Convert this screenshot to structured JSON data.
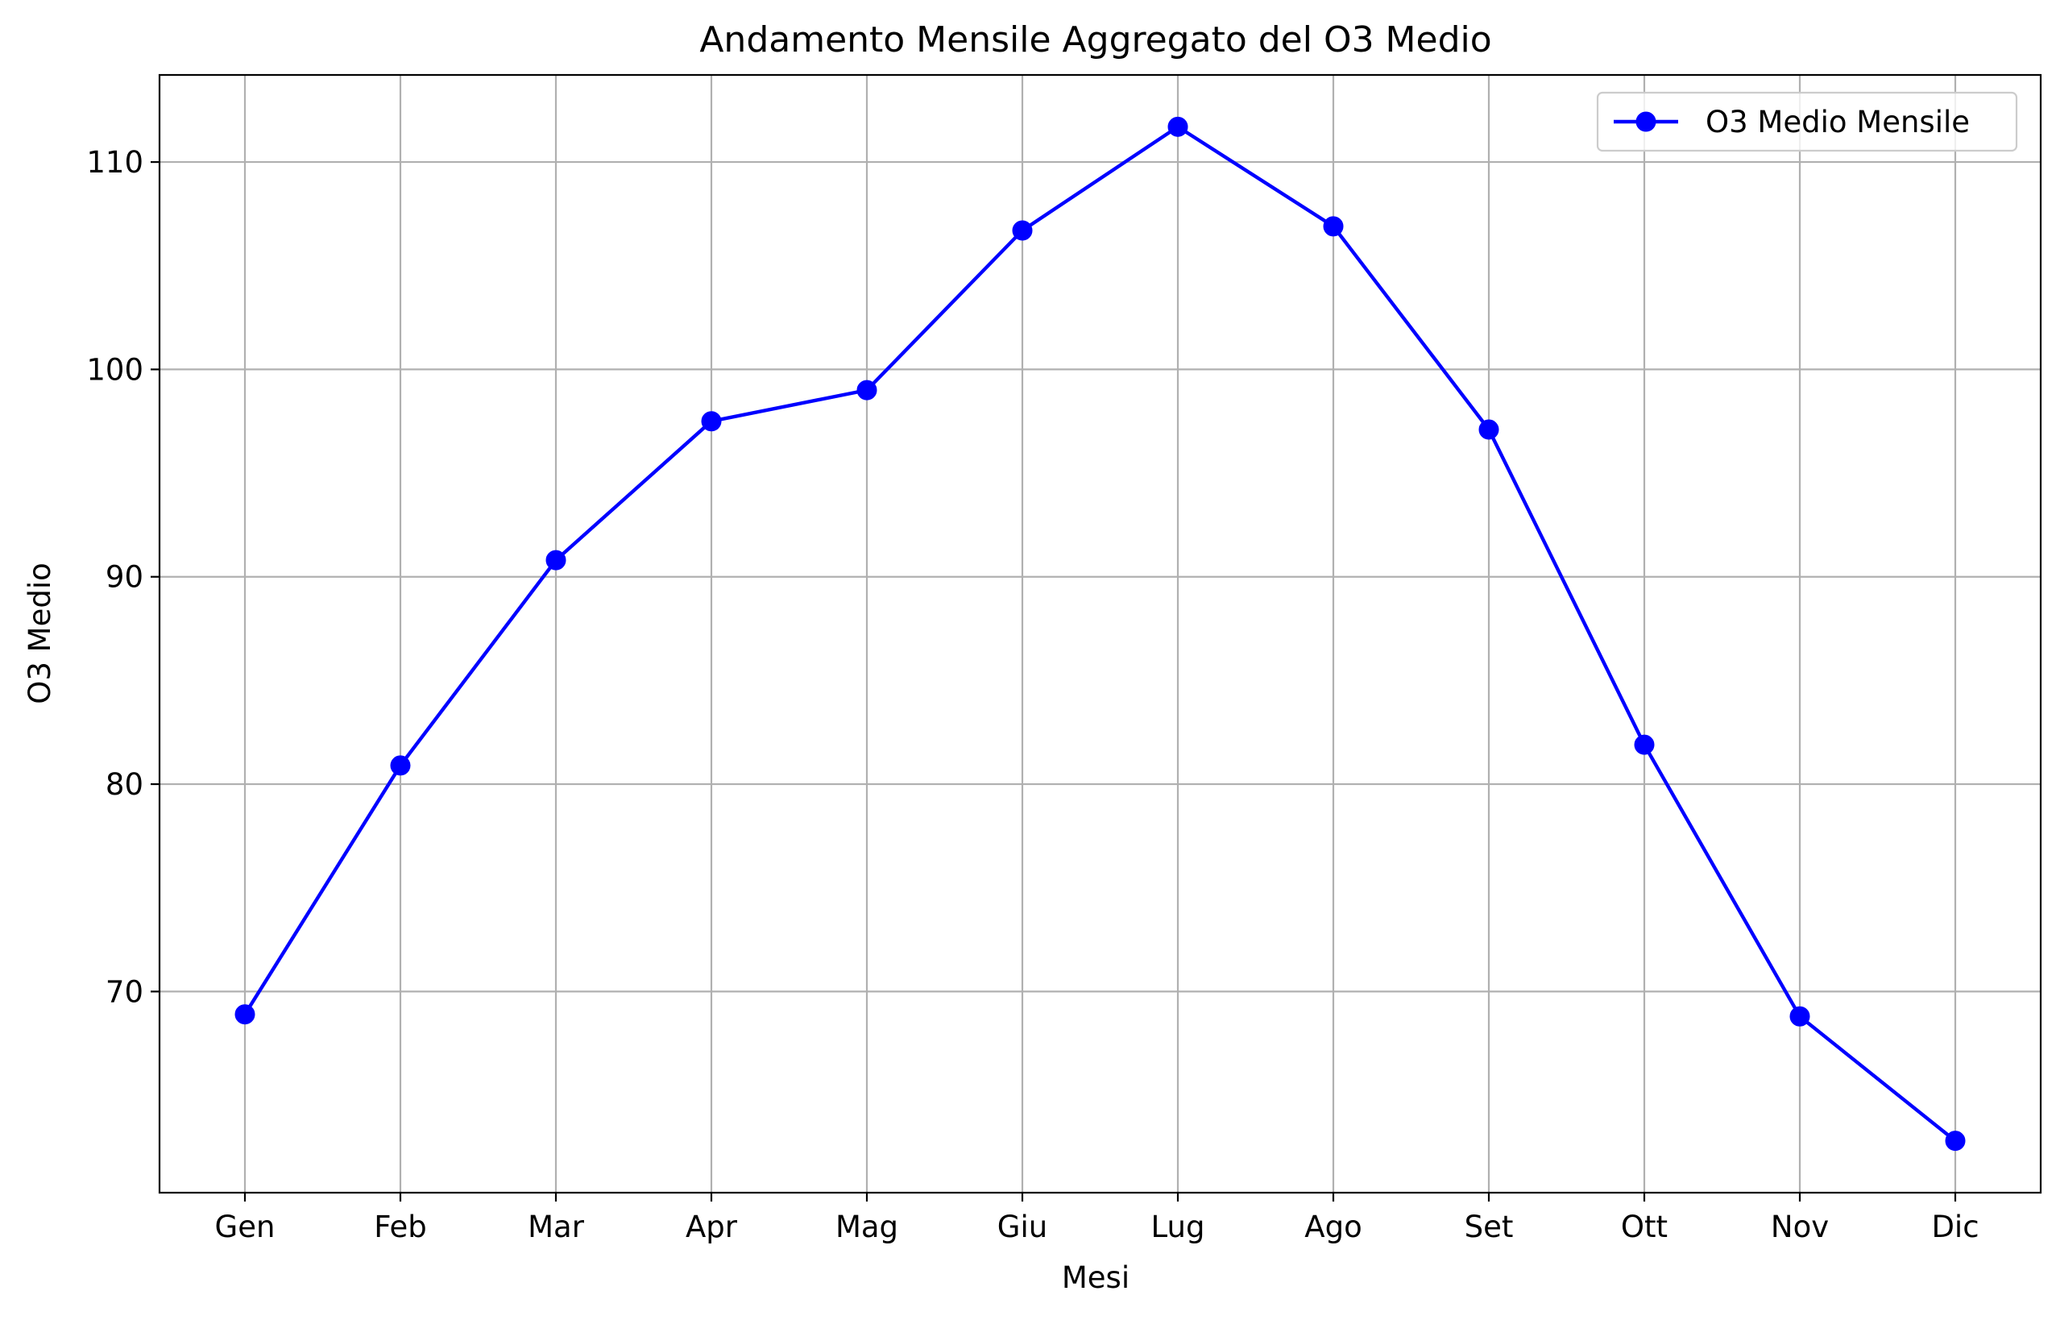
{
  "chart_data": {
    "type": "line",
    "title": "Andamento Mensile Aggregato del O3 Medio",
    "xlabel": "Mesi",
    "ylabel": "O3 Medio",
    "categories": [
      "Gen",
      "Feb",
      "Mar",
      "Apr",
      "Mag",
      "Giu",
      "Lug",
      "Ago",
      "Set",
      "Ott",
      "Nov",
      "Dic"
    ],
    "series": [
      {
        "name": "O3 Medio Mensile",
        "color": "#0000ff",
        "marker": "circle",
        "values": [
          68.9,
          80.9,
          90.8,
          97.5,
          99.0,
          106.7,
          111.7,
          106.9,
          97.1,
          81.9,
          68.8,
          62.8
        ]
      }
    ],
    "ylim": [
      60.3,
      114.2
    ],
    "yticks": [
      70,
      80,
      90,
      100,
      110
    ],
    "grid": true,
    "legend_position": "top-right"
  }
}
